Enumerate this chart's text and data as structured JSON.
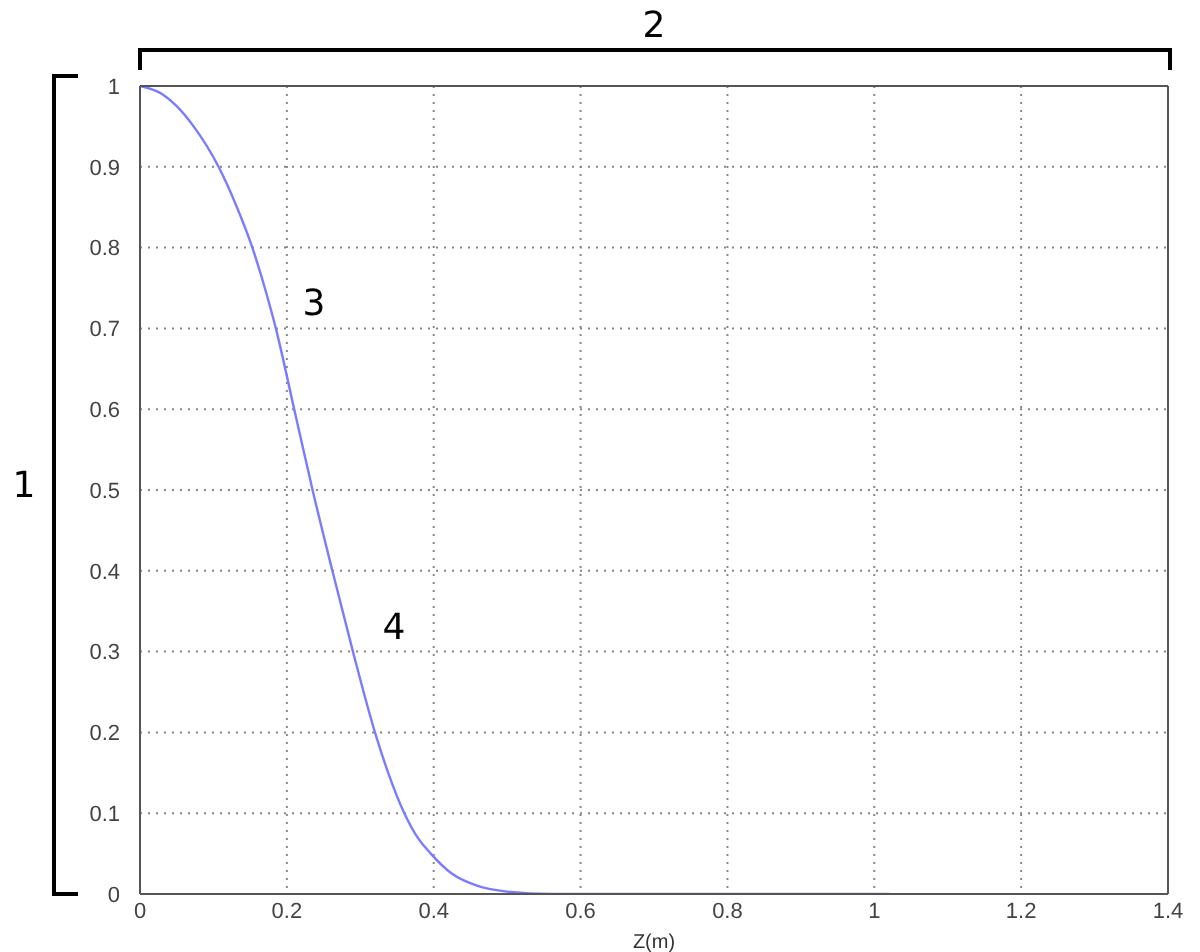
{
  "chart_data": {
    "type": "line",
    "xlabel": "Z(m)",
    "x": [
      0,
      0.03,
      0.05,
      0.073,
      0.107,
      0.132,
      0.153,
      0.17,
      0.185,
      0.21,
      0.235,
      0.262,
      0.29,
      0.32,
      0.338,
      0.36,
      0.378,
      0.396,
      0.425,
      0.46,
      0.5,
      0.56,
      1.02
    ],
    "values": [
      1,
      0.99,
      0.975,
      0.95,
      0.9,
      0.85,
      0.8,
      0.75,
      0.7,
      0.6,
      0.5,
      0.4,
      0.3,
      0.2,
      0.15,
      0.1,
      0.07,
      0.05,
      0.025,
      0.01,
      0.003,
      0,
      0
    ],
    "color": "#7b7bff",
    "xlim": [
      0,
      1.4
    ],
    "xticks": [
      0,
      0.2,
      0.4,
      0.6,
      0.8,
      1,
      1.2,
      1.4
    ],
    "ylim": [
      0,
      1
    ],
    "yticks": [
      0,
      0.1,
      0.2,
      0.3,
      0.4,
      0.5,
      0.6,
      0.7,
      0.8,
      0.9,
      1
    ],
    "grid": true,
    "marker": "none",
    "line_style": "solid",
    "annotations": [
      "1",
      "2",
      "3",
      "4"
    ]
  }
}
